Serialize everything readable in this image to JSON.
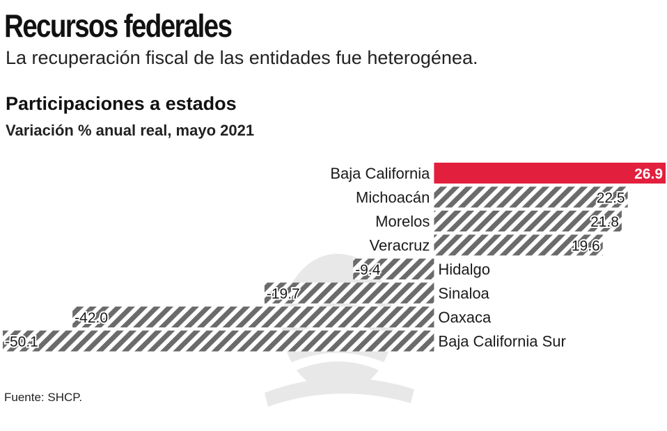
{
  "header": {
    "title": "Recursos federales",
    "subtitle": "La recuperación fiscal de las entidades fue heterogénea."
  },
  "chart_data": {
    "type": "bar",
    "orientation": "horizontal",
    "title": "Participaciones a estados",
    "subtitle": "Variación % anual real, mayo 2021",
    "categories": [
      "Baja California",
      "Michoacán",
      "Morelos",
      "Veracruz",
      "Hidalgo",
      "Sinaloa",
      "Oaxaca",
      "Baja California Sur"
    ],
    "values": [
      26.9,
      22.5,
      21.8,
      19.6,
      -9.4,
      -19.7,
      -42.0,
      -50.1
    ],
    "value_labels": [
      "26.9",
      "22.5",
      "21.8",
      "19.6",
      "-9.4",
      "-19.7",
      "-42.0",
      "-50.1"
    ],
    "xlim": [
      -50.1,
      26.9
    ],
    "grid": false,
    "highlight_category": "Baja California"
  },
  "colors": {
    "highlight": "#e21f3d",
    "hatch": "#6b6b6b",
    "text": "#1a1a1a"
  },
  "footer": {
    "source": "Fuente: SHCP."
  },
  "decoration": {
    "watermark_icon": "eagle-seal-icon"
  }
}
